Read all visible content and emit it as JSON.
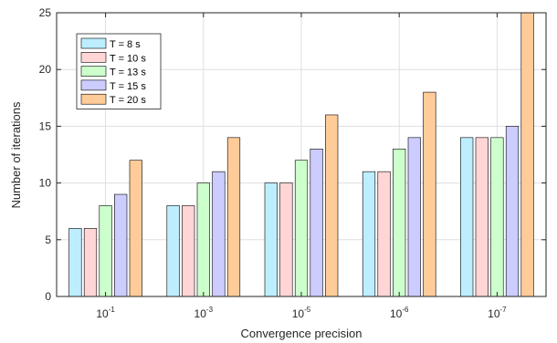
{
  "chart_data": {
    "type": "bar",
    "xlabel": "Convergence precision",
    "ylabel": "Number of iterations",
    "ylim": [
      0,
      25
    ],
    "yticks": [
      0,
      5,
      10,
      15,
      20,
      25
    ],
    "grid": true,
    "legend_position": "top-left",
    "categories": [
      {
        "base": "10",
        "exponent": "-1"
      },
      {
        "base": "10",
        "exponent": "-3"
      },
      {
        "base": "10",
        "exponent": "-5"
      },
      {
        "base": "10",
        "exponent": "-6"
      },
      {
        "base": "10",
        "exponent": "-7"
      }
    ],
    "series": [
      {
        "name": "T = 8 s",
        "color": "#bdeeff",
        "values": [
          6,
          8,
          10,
          11,
          14
        ]
      },
      {
        "name": "T = 10 s",
        "color": "#ffd5d5",
        "values": [
          6,
          8,
          10,
          11,
          14
        ]
      },
      {
        "name": "T = 13 s",
        "color": "#ccffcc",
        "values": [
          8,
          10,
          12,
          13,
          14
        ]
      },
      {
        "name": "T = 15 s",
        "color": "#ccccff",
        "values": [
          9,
          11,
          13,
          14,
          15
        ]
      },
      {
        "name": "T = 20 s",
        "color": "#ffcc99",
        "values": [
          12,
          14,
          16,
          18,
          25
        ]
      }
    ]
  }
}
